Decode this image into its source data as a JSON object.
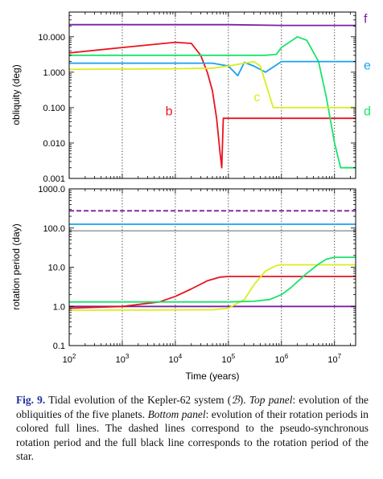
{
  "figure": {
    "label": "Fig. 9.",
    "caption_pre": " Tidal evolution of the Kepler-62 system (",
    "caption_sym": "ℬ",
    "caption_mid1": "). ",
    "caption_top_label": "Top panel",
    "caption_mid2": ": evolution of the obliquities of the five planets. ",
    "caption_bottom_label": "Bottom panel",
    "caption_post": ": evolution of their rotation periods in colored full lines. The dashed lines correspond to the pseudo-synchronous rotation period and the full black line corresponds to the rotation period of the star."
  },
  "colors": {
    "b": "#e8141e",
    "c": "#d9ee1a",
    "d": "#19e36a",
    "e": "#1ba0ee",
    "f": "#7b1fa2",
    "star": "#777777"
  },
  "chart_data": [
    {
      "type": "line",
      "panel": "top",
      "ylabel": "obliquity (deg)",
      "xscale": "log",
      "yscale": "log",
      "xlim": [
        100.0,
        25000000.0
      ],
      "ylim": [
        0.001,
        50
      ],
      "yticks": [
        0.001,
        0.01,
        0.1,
        1,
        10
      ],
      "ytick_labels": [
        "0.001",
        "0.010",
        "0.100",
        "1.000",
        "10.000"
      ],
      "grid": "dotted vertical lines at each decade",
      "series": [
        {
          "name": "f",
          "x": [
            100.0,
            100000.0,
            1000000.0,
            25000000.0
          ],
          "y": [
            22,
            22,
            21,
            21
          ]
        },
        {
          "name": "b",
          "x": [
            100.0,
            1000.0,
            10000.0,
            20000.0,
            30000.0,
            40000.0,
            50000.0,
            60000.0,
            70000.0,
            75000.0,
            80000.0,
            90000.0,
            100000.0,
            1000000.0,
            25000000.0
          ],
          "y": [
            3.5,
            5,
            7,
            6.5,
            3,
            1,
            0.3,
            0.05,
            0.005,
            0.002,
            0.05,
            0.05,
            0.05,
            0.05,
            0.05
          ]
        },
        {
          "name": "d",
          "x": [
            100.0,
            10000.0,
            500000.0,
            800000.0,
            1000000.0,
            2000000.0,
            3000000.0,
            5000000.0,
            7000000.0,
            10000000.0,
            13000000.0,
            25000000.0
          ],
          "y": [
            3,
            3,
            3,
            3.2,
            5,
            10,
            8,
            2,
            0.2,
            0.01,
            0.002,
            0.002
          ]
        },
        {
          "name": "e",
          "x": [
            100.0,
            10000.0,
            50000.0,
            100000.0,
            150000.0,
            200000.0,
            300000.0,
            500000.0,
            1000000.0,
            3000000.0,
            10000000.0,
            25000000.0
          ],
          "y": [
            1.8,
            1.8,
            1.8,
            1.5,
            0.8,
            1.9,
            1.5,
            1,
            2,
            2,
            2,
            2
          ]
        },
        {
          "name": "c",
          "x": [
            100.0,
            10000.0,
            50000.0,
            100000.0,
            300000.0,
            400000.0,
            500000.0,
            700000.0,
            1000000.0,
            10000000.0,
            25000000.0
          ],
          "y": [
            1.2,
            1.25,
            1.3,
            1.5,
            2,
            1.5,
            0.5,
            0.1,
            0.1,
            0.1,
            0.1
          ]
        }
      ],
      "labels": [
        "b",
        "c",
        "d",
        "e",
        "f"
      ]
    },
    {
      "type": "line",
      "panel": "bottom",
      "xlabel": "Time (years)",
      "ylabel": "rotation period (day)",
      "xscale": "log",
      "yscale": "log",
      "xlim": [
        100.0,
        25000000.0
      ],
      "ylim": [
        0.1,
        1000
      ],
      "xticks": [
        100.0,
        1000.0,
        10000.0,
        100000.0,
        1000000.0,
        10000000.0
      ],
      "xtick_labels": [
        [
          "10",
          "2"
        ],
        [
          "10",
          "3"
        ],
        [
          "10",
          "4"
        ],
        [
          "10",
          "5"
        ],
        [
          "10",
          "6"
        ],
        [
          "10",
          "7"
        ]
      ],
      "yticks": [
        0.1,
        1,
        10,
        100,
        1000
      ],
      "ytick_labels": [
        "0.1",
        "1.0",
        "10.0",
        "100.0",
        "1000.0"
      ],
      "grid": "dotted vertical lines at each decade",
      "series": [
        {
          "name": "f",
          "x": [
            100.0,
            25000000.0
          ],
          "y": [
            1.0,
            1.0
          ]
        },
        {
          "name": "b",
          "x": [
            100.0,
            1000.0,
            5000.0,
            10000.0,
            20000.0,
            40000.0,
            70000.0,
            100000.0,
            25000000.0
          ],
          "y": [
            0.9,
            1.0,
            1.3,
            1.8,
            2.8,
            4.5,
            5.6,
            5.8,
            5.8
          ]
        },
        {
          "name": "c",
          "x": [
            100.0,
            50000.0,
            100000.0,
            200000.0,
            300000.0,
            500000.0,
            800000.0,
            1000000.0,
            25000000.0
          ],
          "y": [
            0.8,
            0.82,
            0.9,
            1.5,
            3.5,
            8,
            11,
            11.5,
            11.5
          ]
        },
        {
          "name": "d",
          "x": [
            100.0,
            100000.0,
            300000.0,
            600000.0,
            1000000.0,
            1500000.0,
            3000000.0,
            5000000.0,
            7000000.0,
            10000000.0,
            25000000.0
          ],
          "y": [
            1.3,
            1.3,
            1.35,
            1.5,
            2,
            3,
            7,
            12,
            16,
            18,
            18
          ]
        },
        {
          "name": "e",
          "x": [
            100.0,
            25000000.0
          ],
          "y": [
            125,
            125
          ]
        },
        {
          "name": "f-pseudo",
          "x": [
            100.0,
            25000000.0
          ],
          "y": [
            275,
            275
          ]
        },
        {
          "name": "star",
          "x": [
            100.0,
            25000000.0
          ],
          "y": [
            85,
            85
          ]
        }
      ]
    }
  ]
}
